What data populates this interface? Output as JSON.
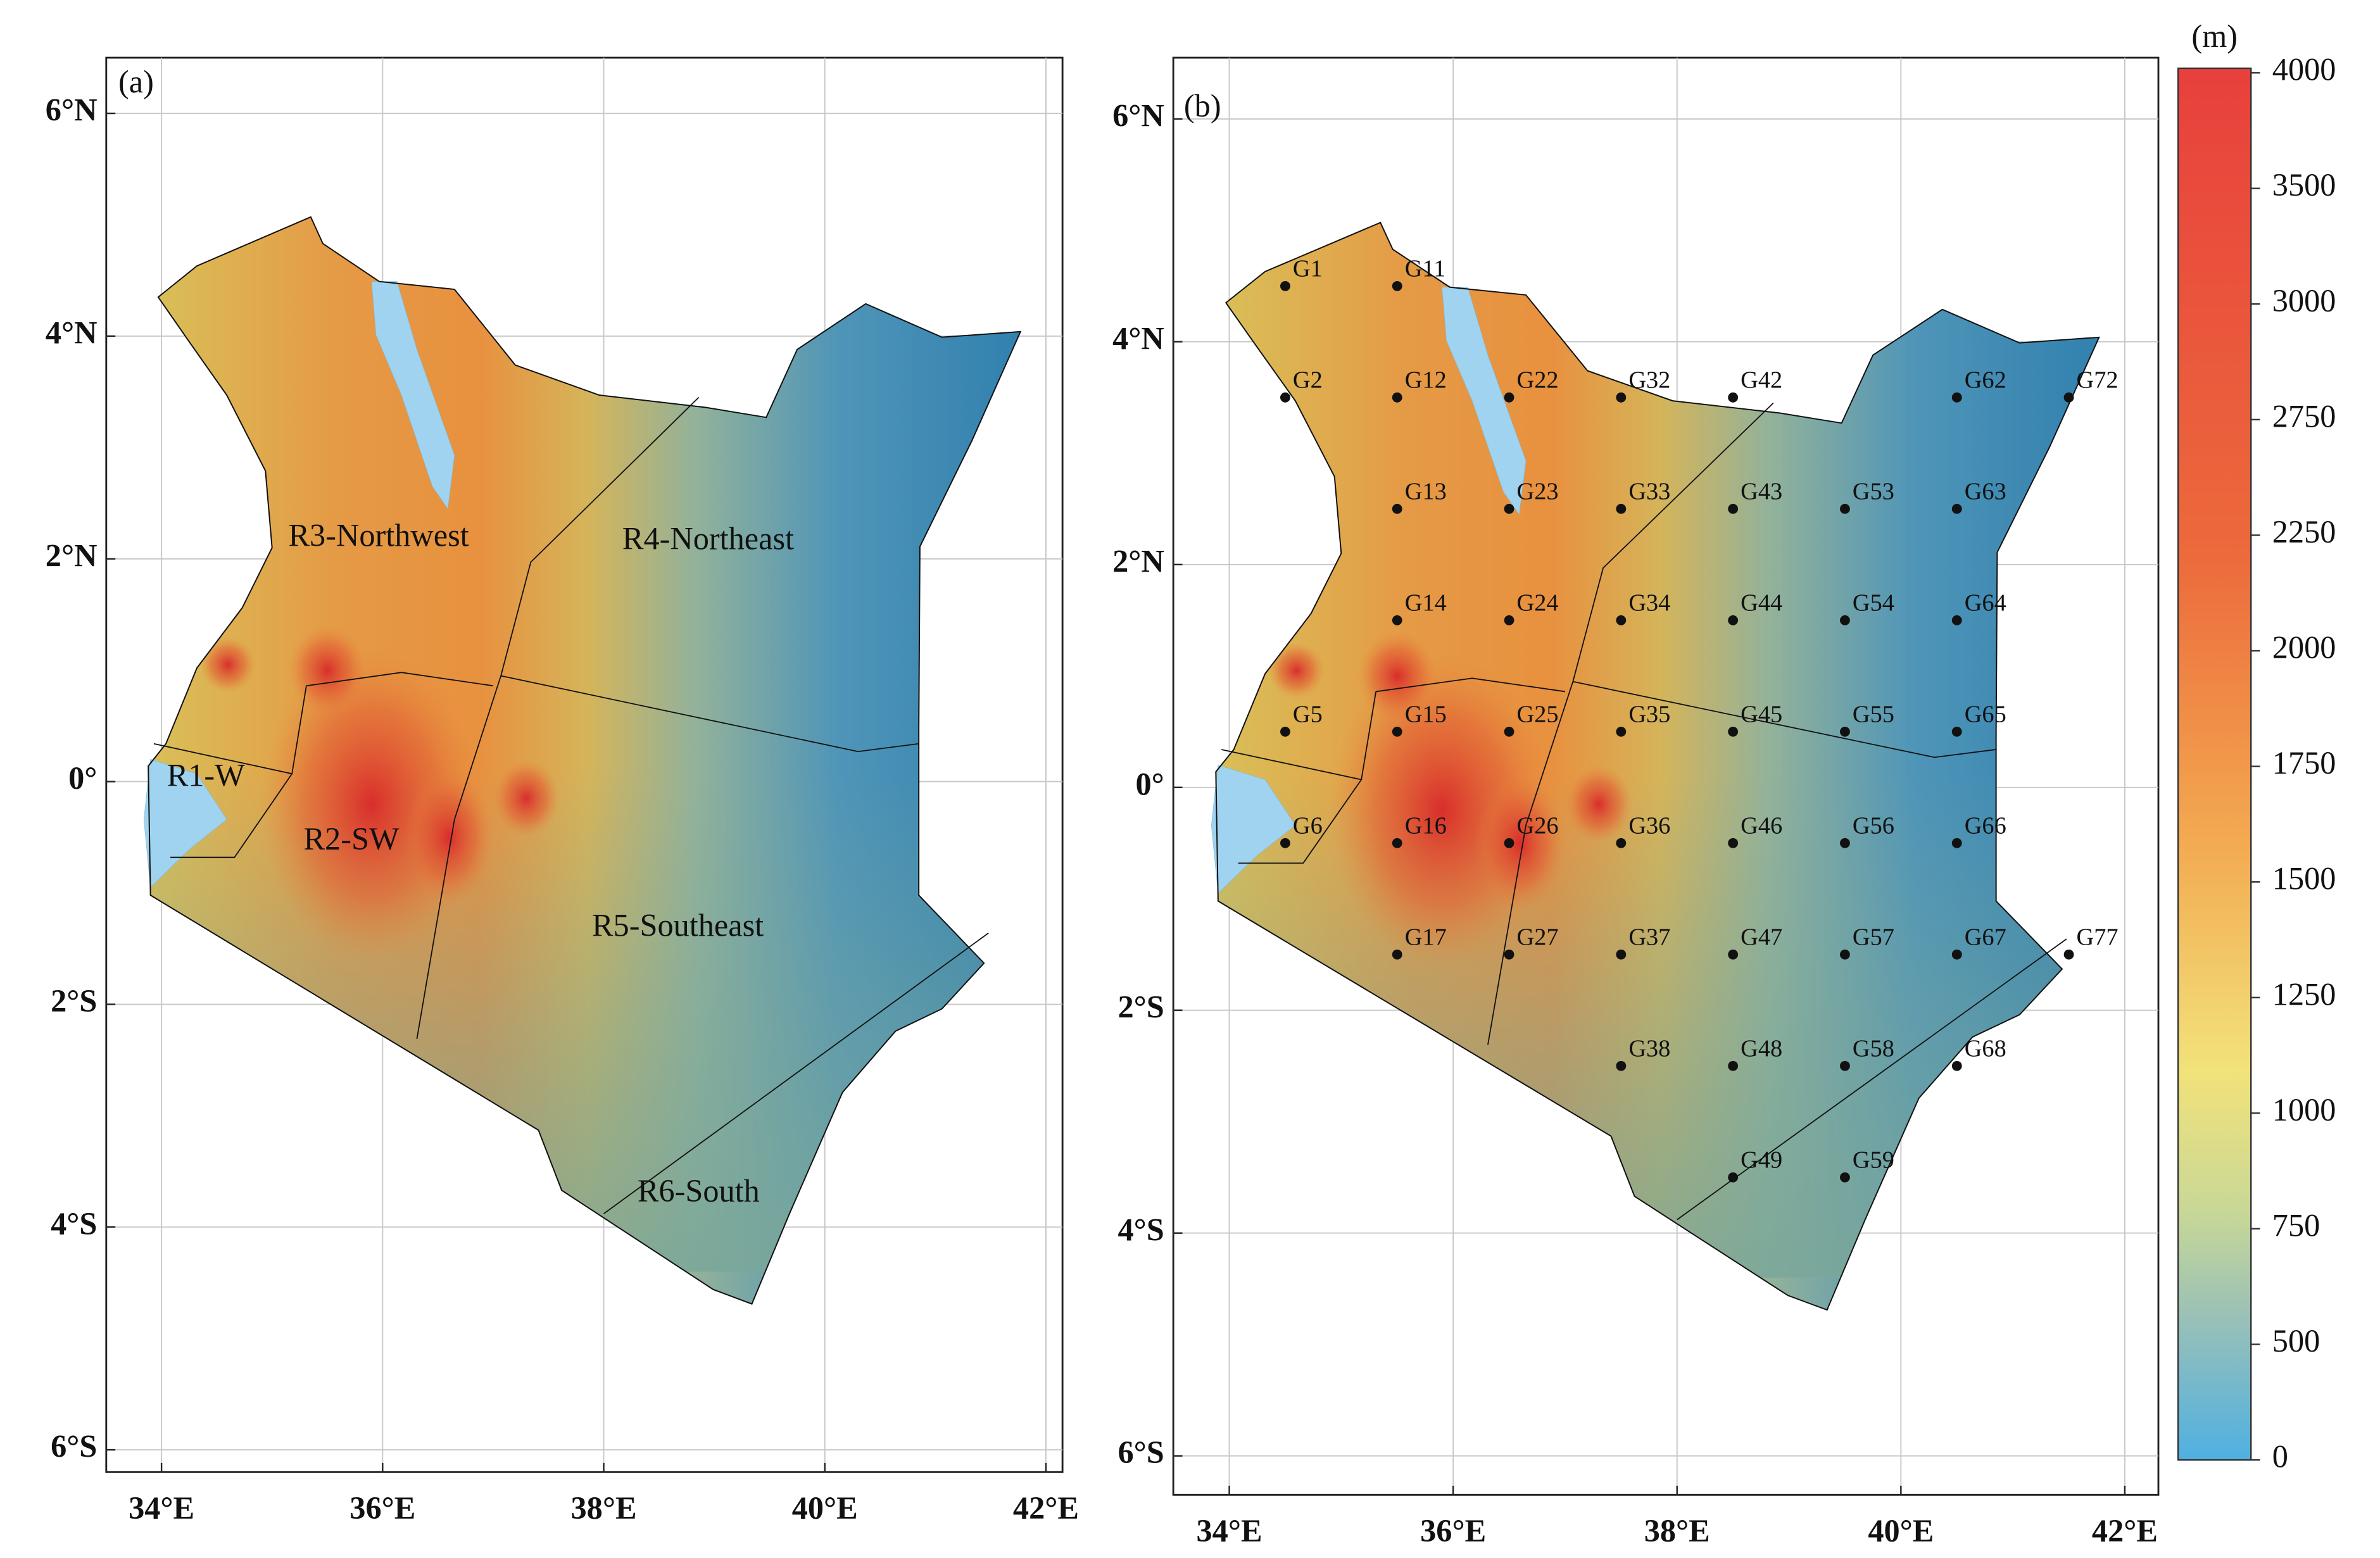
{
  "panels": [
    {
      "label": "(a)",
      "xlim": [
        33.5,
        42.15
      ],
      "ylim": [
        -6.2,
        6.5
      ],
      "regions": [
        "R1-W",
        "R2-SW",
        "R3-Northwest",
        "R4-Northeast",
        "R5-Southeast",
        "R6-South"
      ]
    },
    {
      "label": "(b)",
      "xlim": [
        33.5,
        42.3
      ],
      "ylim": [
        -6.35,
        6.55
      ],
      "grid_points": [
        {
          "name": "G1",
          "lon": 34.5,
          "lat": 4.5
        },
        {
          "name": "G11",
          "lon": 35.5,
          "lat": 4.5
        },
        {
          "name": "G2",
          "lon": 34.5,
          "lat": 3.5
        },
        {
          "name": "G12",
          "lon": 35.5,
          "lat": 3.5
        },
        {
          "name": "G22",
          "lon": 36.5,
          "lat": 3.5
        },
        {
          "name": "G32",
          "lon": 37.5,
          "lat": 3.5
        },
        {
          "name": "G42",
          "lon": 38.5,
          "lat": 3.5
        },
        {
          "name": "G62",
          "lon": 40.5,
          "lat": 3.5
        },
        {
          "name": "G72",
          "lon": 41.5,
          "lat": 3.5
        },
        {
          "name": "G13",
          "lon": 35.5,
          "lat": 2.5
        },
        {
          "name": "G23",
          "lon": 36.5,
          "lat": 2.5
        },
        {
          "name": "G33",
          "lon": 37.5,
          "lat": 2.5
        },
        {
          "name": "G43",
          "lon": 38.5,
          "lat": 2.5
        },
        {
          "name": "G53",
          "lon": 39.5,
          "lat": 2.5
        },
        {
          "name": "G63",
          "lon": 40.5,
          "lat": 2.5
        },
        {
          "name": "G14",
          "lon": 35.5,
          "lat": 1.5
        },
        {
          "name": "G24",
          "lon": 36.5,
          "lat": 1.5
        },
        {
          "name": "G34",
          "lon": 37.5,
          "lat": 1.5
        },
        {
          "name": "G44",
          "lon": 38.5,
          "lat": 1.5
        },
        {
          "name": "G54",
          "lon": 39.5,
          "lat": 1.5
        },
        {
          "name": "G64",
          "lon": 40.5,
          "lat": 1.5
        },
        {
          "name": "G5",
          "lon": 34.5,
          "lat": 0.5
        },
        {
          "name": "G15",
          "lon": 35.5,
          "lat": 0.5
        },
        {
          "name": "G25",
          "lon": 36.5,
          "lat": 0.5
        },
        {
          "name": "G35",
          "lon": 37.5,
          "lat": 0.5
        },
        {
          "name": "G45",
          "lon": 38.5,
          "lat": 0.5
        },
        {
          "name": "G55",
          "lon": 39.5,
          "lat": 0.5
        },
        {
          "name": "G65",
          "lon": 40.5,
          "lat": 0.5
        },
        {
          "name": "G6",
          "lon": 34.5,
          "lat": -0.5
        },
        {
          "name": "G16",
          "lon": 35.5,
          "lat": -0.5
        },
        {
          "name": "G26",
          "lon": 36.5,
          "lat": -0.5
        },
        {
          "name": "G36",
          "lon": 37.5,
          "lat": -0.5
        },
        {
          "name": "G46",
          "lon": 38.5,
          "lat": -0.5
        },
        {
          "name": "G56",
          "lon": 39.5,
          "lat": -0.5
        },
        {
          "name": "G66",
          "lon": 40.5,
          "lat": -0.5
        },
        {
          "name": "G17",
          "lon": 35.5,
          "lat": -1.5
        },
        {
          "name": "G27",
          "lon": 36.5,
          "lat": -1.5
        },
        {
          "name": "G37",
          "lon": 37.5,
          "lat": -1.5
        },
        {
          "name": "G47",
          "lon": 38.5,
          "lat": -1.5
        },
        {
          "name": "G57",
          "lon": 39.5,
          "lat": -1.5
        },
        {
          "name": "G67",
          "lon": 40.5,
          "lat": -1.5
        },
        {
          "name": "G77",
          "lon": 41.5,
          "lat": -1.5
        },
        {
          "name": "G38",
          "lon": 37.5,
          "lat": -2.5
        },
        {
          "name": "G48",
          "lon": 38.5,
          "lat": -2.5
        },
        {
          "name": "G58",
          "lon": 39.5,
          "lat": -2.5
        },
        {
          "name": "G68",
          "lon": 40.5,
          "lat": -2.5
        },
        {
          "name": "G49",
          "lon": 38.5,
          "lat": -3.5
        },
        {
          "name": "G59",
          "lon": 39.5,
          "lat": -3.5
        }
      ]
    }
  ],
  "xticks": [
    {
      "value": 34,
      "label": "34°E"
    },
    {
      "value": 36,
      "label": "36°E"
    },
    {
      "value": 38,
      "label": "38°E"
    },
    {
      "value": 40,
      "label": "40°E"
    },
    {
      "value": 42,
      "label": "42°E"
    }
  ],
  "yticks": [
    {
      "value": 6,
      "label": "6°N"
    },
    {
      "value": 4,
      "label": "4°N"
    },
    {
      "value": 2,
      "label": "2°N"
    },
    {
      "value": 0,
      "label": "0°"
    },
    {
      "value": -2,
      "label": "2°S"
    },
    {
      "value": -4,
      "label": "4°S"
    },
    {
      "value": -6,
      "label": "6°S"
    }
  ],
  "colorbar": {
    "unit": "(m)",
    "ticks": [
      4000,
      3500,
      3000,
      2750,
      2250,
      2000,
      1750,
      1500,
      1250,
      1000,
      750,
      500,
      0
    ]
  }
}
